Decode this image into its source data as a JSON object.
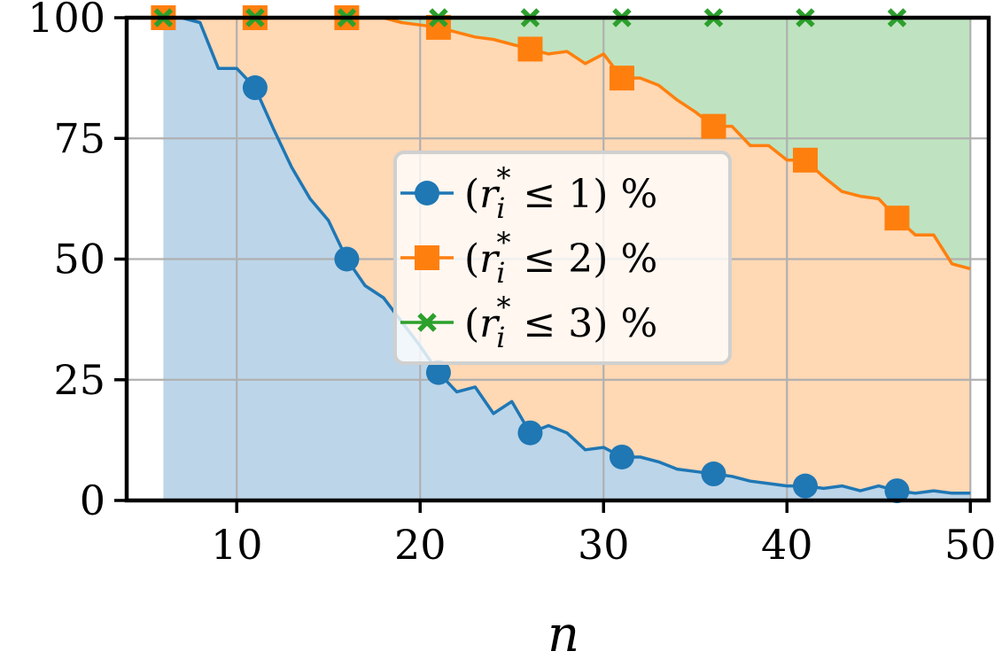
{
  "chart_data": {
    "type": "area",
    "title": "",
    "xlabel": "n",
    "ylabel": "",
    "xlim": [
      4,
      51
    ],
    "ylim": [
      0,
      100
    ],
    "xticks": [
      10,
      20,
      30,
      40,
      50
    ],
    "yticks": [
      0,
      25,
      50,
      75,
      100
    ],
    "grid": true,
    "legend_position": "center",
    "stacked_fill": true,
    "x": [
      6,
      7,
      8,
      9,
      10,
      11,
      12,
      13,
      14,
      15,
      16,
      17,
      18,
      19,
      20,
      21,
      22,
      23,
      24,
      25,
      26,
      27,
      28,
      29,
      30,
      31,
      32,
      33,
      34,
      35,
      36,
      37,
      38,
      39,
      40,
      41,
      42,
      43,
      44,
      45,
      46,
      47,
      48,
      49,
      50
    ],
    "series": [
      {
        "name": "(r_i^* ≤ 1) %",
        "legend_prefix": "(",
        "legend_var": "r",
        "legend_sub": "i",
        "legend_sup": "*",
        "legend_suffix": " ≤ 1) %",
        "marker": "circle",
        "color": "#1f77b4",
        "fill_color": "#bcd5e9",
        "values": [
          100,
          100,
          99,
          89.5,
          89.5,
          85.5,
          77,
          69,
          62.5,
          58,
          50,
          44.5,
          42,
          37,
          32,
          26.5,
          22.5,
          23.5,
          18,
          20.5,
          14,
          15.5,
          14,
          10.5,
          11,
          9,
          9,
          8,
          6.5,
          6,
          5.5,
          5,
          4,
          3.5,
          3,
          3,
          2.5,
          3,
          2,
          3,
          2,
          1.5,
          2,
          1.5,
          1.5
        ]
      },
      {
        "name": "(r_i^* ≤ 2) %",
        "legend_prefix": "(",
        "legend_var": "r",
        "legend_sub": "i",
        "legend_sup": "*",
        "legend_suffix": " ≤ 2) %",
        "marker": "square",
        "color": "#ff7f0e",
        "fill_color": "#ffd8b4",
        "values": [
          100,
          100,
          100,
          100,
          100,
          100,
          100,
          100,
          100,
          100,
          100,
          100,
          100,
          99,
          98.5,
          98,
          97,
          96,
          95.5,
          94.5,
          93.5,
          92.5,
          93,
          90.5,
          92.5,
          87.5,
          87.5,
          86,
          83,
          80.5,
          77.5,
          77.5,
          73.5,
          73.5,
          70.5,
          70.5,
          67,
          64,
          63,
          62.5,
          58.5,
          55,
          55,
          49,
          48
        ]
      },
      {
        "name": "(r_i^* ≤ 3) %",
        "legend_prefix": "(",
        "legend_var": "r",
        "legend_sub": "i",
        "legend_sup": "*",
        "legend_suffix": " ≤ 3) %",
        "marker": "x",
        "color": "#2ca02c",
        "fill_color": "#bfe3c0",
        "values": [
          100,
          100,
          100,
          100,
          100,
          100,
          100,
          100,
          100,
          100,
          100,
          100,
          100,
          100,
          100,
          100,
          100,
          100,
          100,
          100,
          100,
          100,
          100,
          100,
          100,
          100,
          100,
          100,
          100,
          100,
          100,
          100,
          100,
          100,
          100,
          100,
          100,
          100,
          100,
          100,
          100,
          100,
          100,
          100,
          100
        ]
      }
    ],
    "marker_x": [
      6,
      11,
      16,
      21,
      26,
      31,
      36,
      41,
      46
    ]
  }
}
